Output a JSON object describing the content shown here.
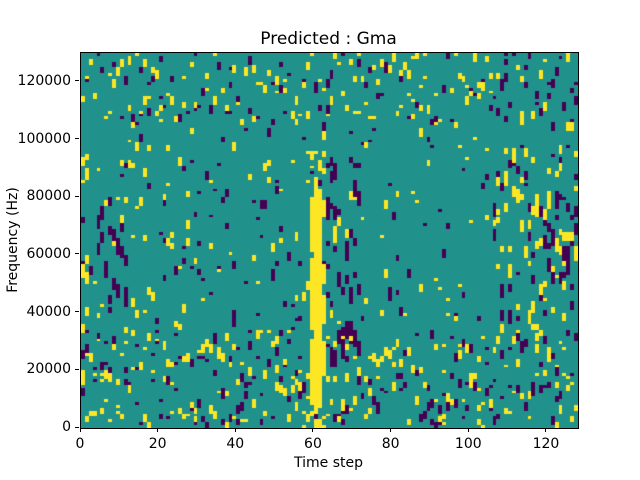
{
  "chart_data": {
    "type": "heatmap",
    "title": "Predicted : Gma",
    "xlabel": "Time step",
    "ylabel": "Frequency (Hz)",
    "xlim": [
      0,
      128
    ],
    "ylim": [
      0,
      130000
    ],
    "x_ticks": [
      0,
      20,
      40,
      60,
      80,
      100,
      120
    ],
    "y_ticks": [
      0,
      20000,
      40000,
      60000,
      80000,
      100000,
      120000
    ],
    "grid": false,
    "legend": "none",
    "colormap": "viridis",
    "colors": {
      "background": "#21918c",
      "high": "#fde725",
      "low": "#440154"
    },
    "cells": {
      "cols": 128,
      "rows": 130
    },
    "description": "Sparse ternary spectrogram mask: teal mid background with scattered single-cell yellow (high) and dark-purple (low) runs; a solid yellow vertical stripe near time step 60 spanning roughly 5000-83000 Hz with a dense purple cluster just right of it, denser mixed noise along the left edge, bottom band, and right side.",
    "features": {
      "stripe_columns": [
        {
          "col": 59,
          "ranges": [
            [
              8,
              30
            ],
            [
              34,
              58
            ],
            [
              61,
              79
            ]
          ]
        },
        {
          "col": 60,
          "ranges": [
            [
              6,
              84
            ]
          ]
        },
        {
          "col": 61,
          "ranges": [
            [
              7,
              82
            ]
          ]
        },
        {
          "col": 62,
          "ranges": [
            [
              20,
              29
            ],
            [
              36,
              45
            ],
            [
              50,
              56
            ],
            [
              73,
              78
            ]
          ]
        }
      ]
    },
    "noise": {
      "seed": 1337,
      "regions": [
        {
          "name": "base",
          "cols": [
            0,
            128
          ],
          "rows": [
            0,
            130
          ],
          "per_col": 3.2,
          "run": [
            1,
            3
          ]
        },
        {
          "name": "bottom-band",
          "cols": [
            0,
            128
          ],
          "rows": [
            0,
            34
          ],
          "per_col": 2.0,
          "run": [
            1,
            3
          ]
        },
        {
          "name": "top-band",
          "cols": [
            0,
            128
          ],
          "rows": [
            105,
            130
          ],
          "per_col": 1.1,
          "run": [
            1,
            3
          ]
        },
        {
          "name": "left-edge-yellow",
          "cols": [
            0,
            2
          ],
          "rows": [
            15,
            95
          ],
          "per_col": 4.5,
          "run": [
            2,
            5
          ],
          "color": "high"
        },
        {
          "name": "left-purple-cluster",
          "cols": [
            4,
            12
          ],
          "rows": [
            40,
            80
          ],
          "per_col": 2.2,
          "run": [
            2,
            5
          ],
          "color": "low"
        },
        {
          "name": "mid-left-sparse",
          "cols": [
            12,
            40
          ],
          "rows": [
            35,
            105
          ],
          "per_col": 0.8,
          "run": [
            1,
            3
          ]
        },
        {
          "name": "pre-stripe",
          "cols": [
            50,
            59
          ],
          "rows": [
            5,
            95
          ],
          "per_col": 1.0,
          "run": [
            1,
            3
          ]
        },
        {
          "name": "stripe-top-yellow",
          "cols": [
            58,
            63
          ],
          "rows": [
            83,
            98
          ],
          "per_col": 1.4,
          "run": [
            1,
            3
          ],
          "color": "high"
        },
        {
          "name": "stripe-bottom-bits",
          "cols": [
            57,
            64
          ],
          "rows": [
            0,
            6
          ],
          "per_col": 1.2,
          "run": [
            1,
            3
          ],
          "color": "high"
        },
        {
          "name": "post-stripe-purple",
          "cols": [
            62,
            72
          ],
          "rows": [
            15,
            92
          ],
          "per_col": 4.5,
          "run": [
            2,
            6
          ],
          "color": "low"
        },
        {
          "name": "post-stripe-yellow",
          "cols": [
            63,
            71
          ],
          "rows": [
            20,
            85
          ],
          "per_col": 0.9,
          "run": [
            1,
            3
          ],
          "color": "high"
        },
        {
          "name": "mid-right",
          "cols": [
            106,
            128
          ],
          "rows": [
            28,
            98
          ],
          "per_col": 3.0,
          "run": [
            2,
            5
          ]
        },
        {
          "name": "right-edge-purple",
          "cols": [
            119,
            128
          ],
          "rows": [
            48,
            88
          ],
          "per_col": 1.8,
          "run": [
            2,
            5
          ],
          "color": "low"
        }
      ]
    }
  }
}
